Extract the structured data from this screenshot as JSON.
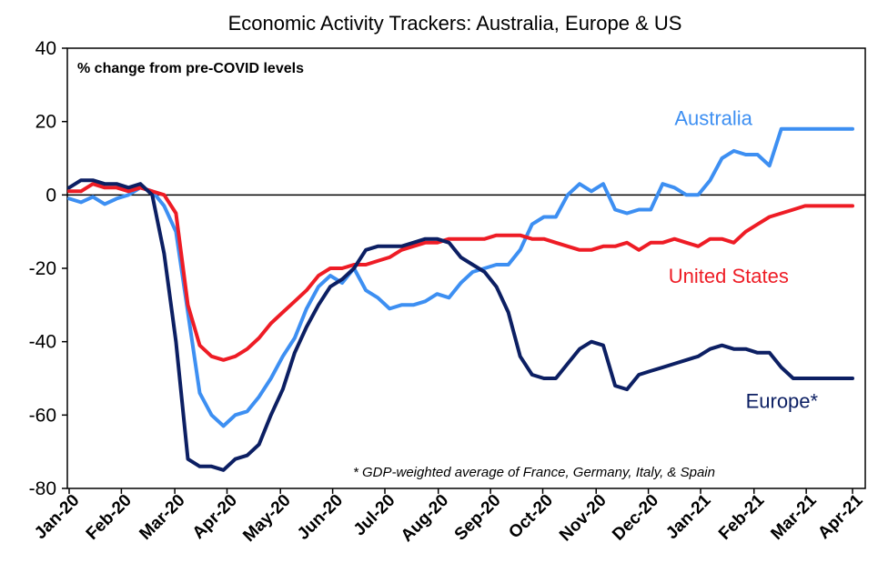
{
  "chart_data": {
    "type": "line",
    "title": "Economic Activity Trackers: Australia, Europe & US",
    "ylabel": "% change from pre-COVID levels",
    "note": "* GDP-weighted average of France, Germany, Italy, & Spain",
    "ylim": [
      -80,
      40
    ],
    "yticks": [
      40,
      20,
      0,
      -20,
      -40,
      -60,
      -80
    ],
    "xlim": [
      0,
      66
    ],
    "categories": [
      "Jan-20",
      "Feb-20",
      "Mar-20",
      "Apr-20",
      "May-20",
      "Jun-20",
      "Jul-20",
      "Aug-20",
      "Sep-20",
      "Oct-20",
      "Nov-20",
      "Dec-20",
      "Jan-21",
      "Feb-21",
      "Mar-21",
      "Apr-21"
    ],
    "category_positions": [
      0,
      4.4,
      8.9,
      13.3,
      17.8,
      22.2,
      26.6,
      31.1,
      35.5,
      39.9,
      44.4,
      48.8,
      53.2,
      57.7,
      62.1,
      66
    ],
    "grid": false,
    "zero_line": true,
    "series": [
      {
        "name": "Australia",
        "color": "#3d8ff2",
        "label_anchor": [
          51,
          19
        ],
        "x": [
          0,
          1,
          2,
          3,
          4,
          5,
          6,
          7,
          8,
          9,
          10,
          11,
          12,
          13,
          14,
          15,
          16,
          17,
          18,
          19,
          20,
          21,
          22,
          23,
          24,
          25,
          26,
          27,
          28,
          29,
          30,
          31,
          32,
          33,
          34,
          35,
          36,
          37,
          38,
          39,
          40,
          41,
          42,
          43,
          44,
          45,
          46,
          47,
          48,
          49,
          50,
          51,
          52,
          53,
          54,
          55,
          56,
          57,
          58,
          59,
          60,
          61,
          62,
          63,
          64,
          65,
          66
        ],
        "values": [
          -1,
          -2,
          -0.5,
          -2.5,
          -1,
          0,
          2,
          1,
          -3,
          -10,
          -32,
          -54,
          -60,
          -63,
          -60,
          -59,
          -55,
          -50,
          -44,
          -39,
          -31,
          -25,
          -22,
          -24,
          -20,
          -26,
          -28,
          -31,
          -30,
          -30,
          -29,
          -27,
          -28,
          -24,
          -21,
          -20,
          -19,
          -19,
          -15,
          -8,
          -6,
          -6,
          0,
          3,
          1,
          3,
          -4,
          -5,
          -4,
          -4,
          3,
          2,
          0,
          0,
          4,
          10,
          12,
          11,
          11,
          8,
          18,
          18,
          18,
          18,
          18,
          18,
          18
        ]
      },
      {
        "name": "United States",
        "color": "#ee1c25",
        "label_anchor": [
          50.5,
          -24
        ],
        "x": [
          0,
          1,
          2,
          3,
          4,
          5,
          6,
          7,
          8,
          9,
          10,
          11,
          12,
          13,
          14,
          15,
          16,
          17,
          18,
          19,
          20,
          21,
          22,
          23,
          24,
          25,
          26,
          27,
          28,
          29,
          30,
          31,
          32,
          33,
          34,
          35,
          36,
          37,
          38,
          39,
          40,
          41,
          42,
          43,
          44,
          45,
          46,
          47,
          48,
          49,
          50,
          51,
          52,
          53,
          54,
          55,
          56,
          57,
          58,
          59,
          60,
          61,
          62,
          63,
          64,
          65,
          66
        ],
        "values": [
          1,
          1,
          3,
          2,
          2,
          1,
          2,
          1,
          0,
          -5,
          -30,
          -41,
          -44,
          -45,
          -44,
          -42,
          -39,
          -35,
          -32,
          -29,
          -26,
          -22,
          -20,
          -20,
          -19,
          -19,
          -18,
          -17,
          -15,
          -14,
          -13,
          -13,
          -12,
          -12,
          -12,
          -12,
          -11,
          -11,
          -11,
          -12,
          -12,
          -13,
          -14,
          -15,
          -15,
          -14,
          -14,
          -13,
          -15,
          -13,
          -13,
          -12,
          -13,
          -14,
          -12,
          -12,
          -13,
          -10,
          -8,
          -6,
          -5,
          -4,
          -3,
          -3,
          -3,
          -3,
          -3
        ]
      },
      {
        "name": "Europe*",
        "color": "#0c1f63",
        "label_anchor": [
          57,
          -58
        ],
        "x": [
          0,
          1,
          2,
          3,
          4,
          5,
          6,
          7,
          8,
          9,
          10,
          11,
          12,
          13,
          14,
          15,
          16,
          17,
          18,
          19,
          20,
          21,
          22,
          23,
          24,
          25,
          26,
          27,
          28,
          29,
          30,
          31,
          32,
          33,
          34,
          35,
          36,
          37,
          38,
          39,
          40,
          41,
          42,
          43,
          44,
          45,
          46,
          47,
          48,
          49,
          50,
          51,
          52,
          53,
          54,
          55,
          56,
          57,
          58,
          59,
          60,
          61,
          62,
          63,
          64,
          65,
          66
        ],
        "values": [
          2,
          4,
          4,
          3,
          3,
          2,
          3,
          0,
          -16,
          -40,
          -72,
          -74,
          -74,
          -75,
          -72,
          -71,
          -68,
          -60,
          -53,
          -43,
          -36,
          -30,
          -25,
          -23,
          -20,
          -15,
          -14,
          -14,
          -14,
          -13,
          -12,
          -12,
          -13,
          -17,
          -19,
          -21,
          -25,
          -32,
          -44,
          -49,
          -50,
          -50,
          -46,
          -42,
          -40,
          -41,
          -52,
          -53,
          -49,
          -48,
          -47,
          -46,
          -45,
          -44,
          -42,
          -41,
          -42,
          -42,
          -43,
          -43,
          -47,
          -50,
          -50,
          -50,
          -50,
          -50,
          -50
        ]
      }
    ]
  }
}
